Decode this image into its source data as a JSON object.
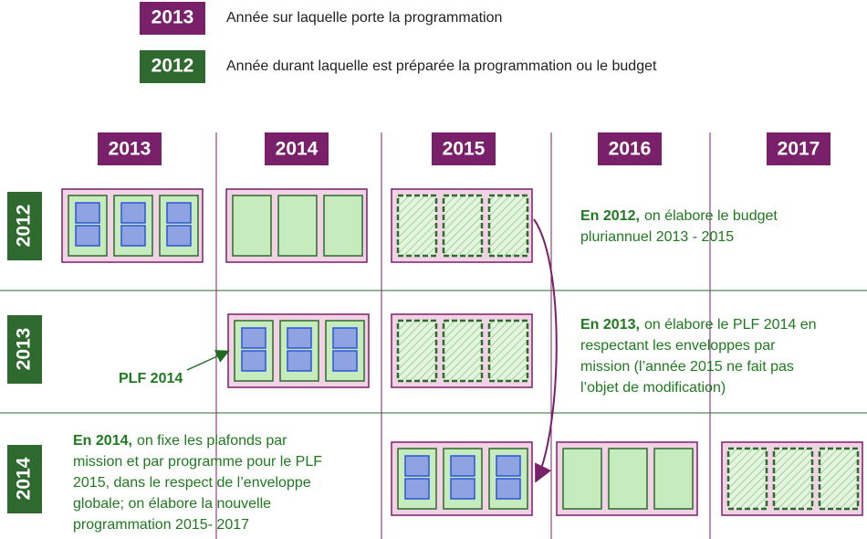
{
  "legend": [
    {
      "year": "2013",
      "text": "Année sur laquelle porte la programmation"
    },
    {
      "year": "2012",
      "text": "Année durant laquelle est préparée la programmation ou le budget"
    }
  ],
  "columns": [
    "2013",
    "2014",
    "2015",
    "2016",
    "2017"
  ],
  "rows": [
    "2012",
    "2013",
    "2014"
  ],
  "plf_label": "PLF 2014",
  "notes": [
    {
      "bold": "En 2012,",
      "first": "on élabore le budget",
      "lines": [
        "pluriannuel 2013 - 2015"
      ]
    },
    {
      "bold": "En 2013,",
      "first": "on élabore le PLF 2014 en",
      "lines": [
        "respectant les enveloppes par",
        "mission (l’année 2015 ne fait pas",
        "l’objet de modification)"
      ]
    },
    {
      "bold": "En 2014,",
      "first": "on fixe les plafonds par",
      "lines": [
        "mission et par programme pour le PLF",
        "2015, dans le respect de l’enveloppe",
        "globale; on élabore la nouvelle",
        "programmation 2015- 2017"
      ]
    }
  ]
}
